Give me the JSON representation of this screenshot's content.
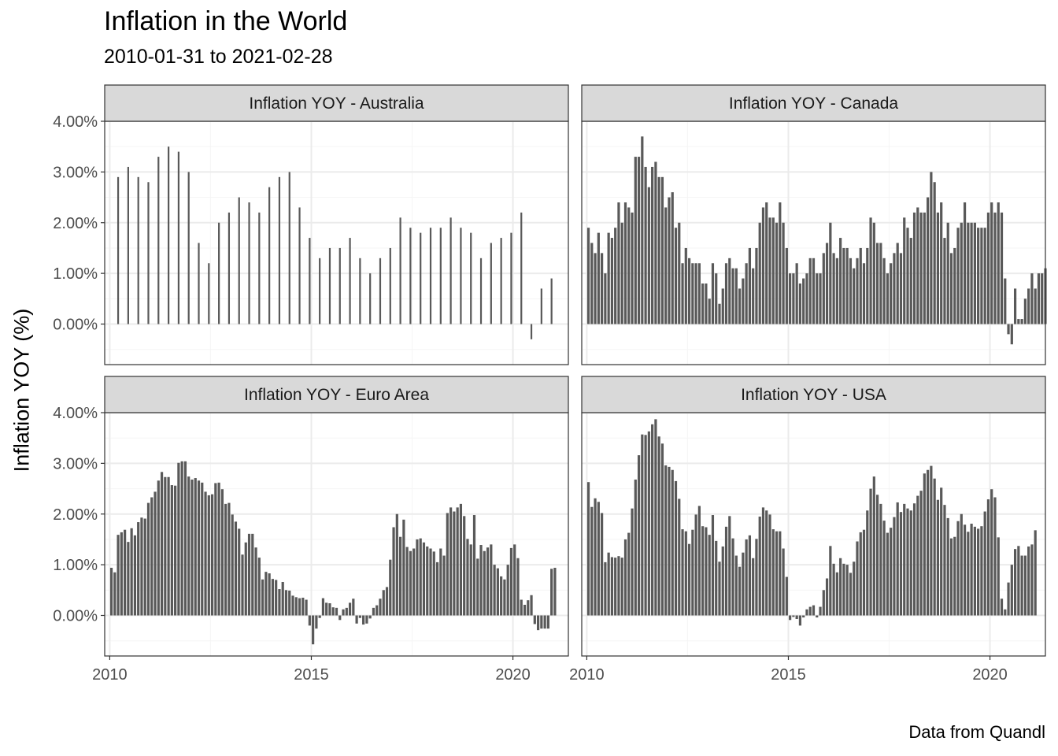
{
  "title": "Inflation in the World",
  "subtitle": "2010-01-31 to 2021-02-28",
  "caption": "Data from Quandl",
  "ylabel": "Inflation YOY (%)",
  "colors": {
    "bar": "#595959",
    "strip": "#d9d9d9",
    "grid_major": "#ebebeb",
    "grid_minor": "#f5f5f5",
    "border": "#333333",
    "tick_text": "#4d4d4d"
  },
  "chart_data": {
    "type": "bar",
    "facet_layout": "2x2",
    "x_axis": {
      "ticks": [
        "2010",
        "2015",
        "2020"
      ],
      "range": [
        "2009-11-01",
        "2021-05-01"
      ]
    },
    "y_axis": {
      "ticks": [
        "0.00%",
        "1.00%",
        "2.00%",
        "3.00%",
        "4.00%"
      ],
      "range": [
        -0.8,
        4.0
      ]
    },
    "grid": true,
    "panels": [
      {
        "name": "Inflation YOY - Australia",
        "frequency": "quarterly",
        "start": "2010-03",
        "values": [
          2.9,
          3.1,
          2.9,
          2.8,
          3.3,
          3.5,
          3.4,
          3.0,
          1.6,
          1.2,
          2.0,
          2.2,
          2.5,
          2.4,
          2.2,
          2.7,
          2.9,
          3.0,
          2.3,
          1.7,
          1.3,
          1.5,
          1.5,
          1.7,
          1.3,
          1.0,
          1.3,
          1.5,
          2.1,
          1.9,
          1.8,
          1.9,
          1.9,
          2.1,
          1.9,
          1.8,
          1.3,
          1.6,
          1.7,
          1.8,
          2.2,
          -0.3,
          0.7,
          0.9
        ]
      },
      {
        "name": "Inflation YOY - Canada",
        "frequency": "monthly",
        "start": "2010-01",
        "values": [
          1.9,
          1.6,
          1.4,
          1.8,
          1.4,
          1.0,
          1.8,
          1.7,
          1.9,
          2.4,
          2.0,
          2.4,
          2.3,
          2.2,
          3.3,
          3.3,
          3.7,
          3.1,
          2.7,
          3.1,
          3.2,
          2.9,
          2.9,
          2.3,
          2.5,
          2.6,
          1.9,
          2.0,
          1.2,
          1.5,
          1.3,
          1.2,
          1.2,
          1.2,
          0.8,
          0.8,
          0.5,
          1.2,
          1.0,
          0.4,
          0.7,
          1.2,
          1.3,
          1.1,
          1.1,
          0.7,
          0.9,
          1.2,
          1.5,
          1.1,
          1.5,
          2.0,
          2.3,
          2.4,
          2.1,
          2.1,
          2.0,
          2.4,
          2.0,
          1.5,
          1.0,
          1.0,
          1.2,
          0.8,
          0.9,
          1.0,
          1.3,
          1.3,
          1.0,
          1.0,
          1.4,
          1.6,
          2.0,
          1.4,
          1.3,
          1.7,
          1.5,
          1.5,
          1.3,
          1.1,
          1.3,
          1.5,
          1.2,
          1.5,
          2.1,
          2.0,
          1.6,
          1.6,
          1.3,
          1.0,
          1.2,
          1.4,
          1.6,
          1.4,
          2.1,
          1.9,
          1.7,
          2.2,
          2.3,
          2.2,
          2.2,
          2.5,
          3.0,
          2.8,
          2.2,
          2.4,
          1.7,
          2.0,
          1.4,
          1.5,
          1.9,
          2.0,
          2.4,
          2.0,
          2.0,
          2.0,
          1.9,
          1.9,
          1.9,
          2.2,
          2.4,
          2.2,
          2.4,
          2.2,
          0.9,
          -0.2,
          -0.4,
          0.7,
          0.1,
          0.1,
          0.5,
          0.7,
          1.0,
          0.7,
          1.0,
          1.0,
          1.1
        ]
      },
      {
        "name": "Inflation YOY - Euro Area",
        "frequency": "monthly",
        "start": "2010-01",
        "values": [
          0.94,
          0.85,
          1.59,
          1.64,
          1.69,
          1.45,
          1.72,
          1.58,
          1.84,
          1.93,
          1.91,
          2.22,
          2.33,
          2.44,
          2.66,
          2.83,
          2.73,
          2.73,
          2.57,
          2.56,
          3.01,
          3.04,
          3.04,
          2.74,
          2.68,
          2.71,
          2.66,
          2.62,
          2.44,
          2.37,
          2.39,
          2.61,
          2.62,
          2.49,
          2.2,
          2.22,
          1.99,
          1.85,
          1.71,
          1.2,
          1.44,
          1.61,
          1.61,
          1.34,
          1.14,
          0.71,
          0.86,
          0.83,
          0.72,
          0.7,
          0.52,
          0.66,
          0.5,
          0.49,
          0.39,
          0.36,
          0.34,
          0.35,
          0.31,
          -0.2,
          -0.57,
          -0.26,
          -0.05,
          0.34,
          0.25,
          0.24,
          0.16,
          0.15,
          -0.09,
          0.12,
          0.15,
          0.25,
          0.33,
          -0.16,
          -0.05,
          -0.18,
          -0.16,
          -0.06,
          0.15,
          0.2,
          0.33,
          0.5,
          0.56,
          1.1,
          1.74,
          2.0,
          1.55,
          1.89,
          1.35,
          1.27,
          1.32,
          1.5,
          1.52,
          1.44,
          1.36,
          1.32,
          1.26,
          1.05,
          1.32,
          1.18,
          2.02,
          2.13,
          2.05,
          2.13,
          2.2,
          1.96,
          1.51,
          1.4,
          1.98,
          1.12,
          1.39,
          1.27,
          1.34,
          1.4,
          1.0,
          0.93,
          0.77,
          0.71,
          1.0,
          1.33,
          1.4,
          1.13,
          0.31,
          0.21,
          0.3,
          0.4,
          -0.17,
          -0.29,
          -0.26,
          -0.26,
          -0.26,
          0.92,
          0.94
        ]
      },
      {
        "name": "Inflation YOY - USA",
        "frequency": "monthly",
        "start": "2010-01",
        "values": [
          2.63,
          2.14,
          2.31,
          2.24,
          2.02,
          1.05,
          1.24,
          1.15,
          1.14,
          1.17,
          1.14,
          1.5,
          1.63,
          2.11,
          2.68,
          3.16,
          3.57,
          3.56,
          3.63,
          3.77,
          3.87,
          3.53,
          3.39,
          2.96,
          2.93,
          2.87,
          2.65,
          2.3,
          1.7,
          1.66,
          1.41,
          1.69,
          1.99,
          2.16,
          1.76,
          1.74,
          1.59,
          1.98,
          1.47,
          1.06,
          1.36,
          1.75,
          1.96,
          1.52,
          1.18,
          0.96,
          1.24,
          1.5,
          1.58,
          1.13,
          1.51,
          1.95,
          2.13,
          2.07,
          1.99,
          1.7,
          1.66,
          1.66,
          1.32,
          0.76,
          -0.09,
          -0.03,
          -0.07,
          -0.2,
          -0.04,
          0.12,
          0.17,
          0.2,
          -0.04,
          0.17,
          0.5,
          0.73,
          1.37,
          1.02,
          0.85,
          1.13,
          1.02,
          1.0,
          0.84,
          1.06,
          1.46,
          1.64,
          1.69,
          2.07,
          2.5,
          2.74,
          2.38,
          2.2,
          1.87,
          1.63,
          1.73,
          1.94,
          2.23,
          2.04,
          2.2,
          2.11,
          2.07,
          2.21,
          2.36,
          2.46,
          2.8,
          2.87,
          2.95,
          2.7,
          2.28,
          2.52,
          2.18,
          1.92,
          1.52,
          1.55,
          1.86,
          2.0,
          1.79,
          1.65,
          1.81,
          1.75,
          1.71,
          1.76,
          2.05,
          2.29,
          2.49,
          2.33,
          1.54,
          0.33,
          0.12,
          0.65,
          1.0,
          1.31,
          1.37,
          1.18,
          1.18,
          1.36,
          1.4,
          1.68
        ]
      }
    ]
  }
}
